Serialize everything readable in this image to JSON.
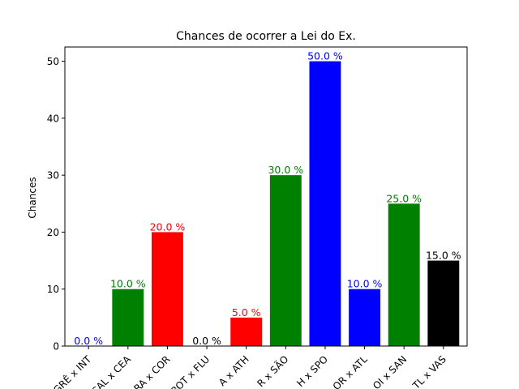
{
  "chart_data": {
    "type": "bar",
    "title": "Chances de ocorrer a Lei do Ex.",
    "xlabel": "",
    "ylabel": "Chances",
    "ylim": [
      0,
      52.5
    ],
    "yticks": [
      0,
      10,
      20,
      30,
      40,
      50
    ],
    "grid": false,
    "categories": [
      "GRÊ x INT",
      "CAL x CEA",
      "RA x COR",
      "BOT x FLU",
      "A x ATH",
      "R x SÃO",
      "H x SPO",
      "OR x ATL",
      "OI x SAN",
      "TL x VAS"
    ],
    "values": [
      0,
      10,
      20,
      0,
      5,
      30,
      50,
      10,
      25,
      15
    ],
    "value_labels": [
      "0.0 %",
      "10.0 %",
      "20.0 %",
      "0.0 %",
      "5.0 %",
      "30.0 %",
      "50.0 %",
      "10.0 %",
      "25.0 %",
      "15.0 %"
    ],
    "colors": [
      "#0000ff",
      "#008000",
      "#ff0000",
      "#000000",
      "#ff0000",
      "#008000",
      "#0000ff",
      "#0000ff",
      "#008000",
      "#000000"
    ]
  }
}
